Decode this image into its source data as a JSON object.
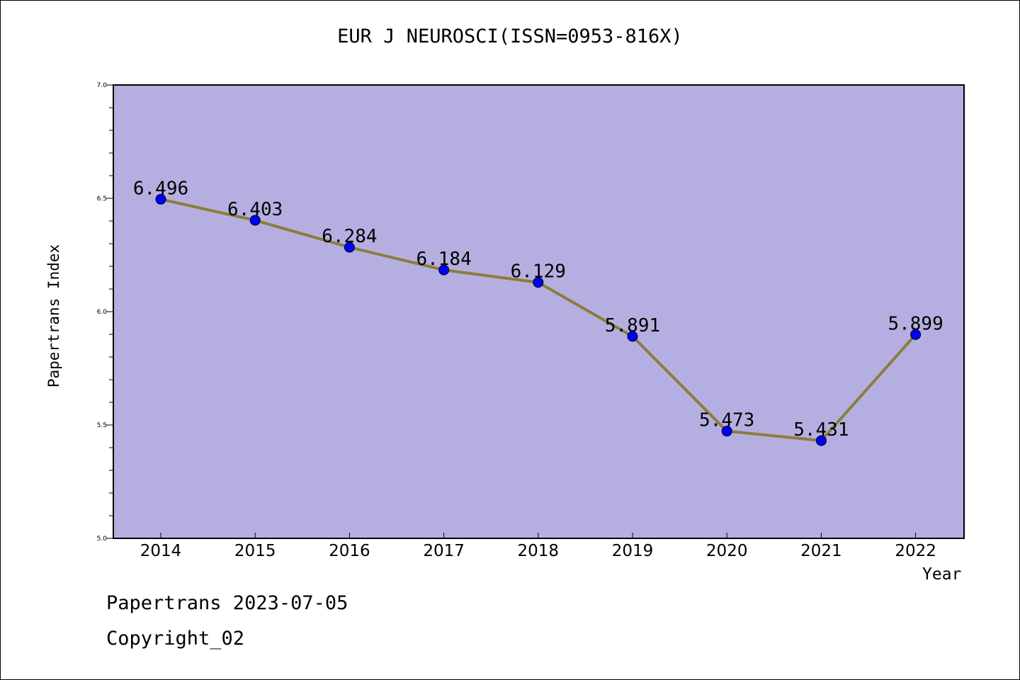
{
  "chart_data": {
    "type": "line",
    "title": "EUR J NEUROSCI(ISSN=0953-816X)",
    "xlabel": "Year",
    "ylabel": "Papertrans Index",
    "categories": [
      "2014",
      "2015",
      "2016",
      "2017",
      "2018",
      "2019",
      "2020",
      "2021",
      "2022"
    ],
    "series": [
      {
        "values": [
          6.496,
          6.403,
          6.284,
          6.184,
          6.129,
          5.891,
          5.473,
          5.431,
          5.899
        ]
      }
    ],
    "data_labels": [
      "6.496",
      "6.403",
      "6.284",
      "6.184",
      "6.129",
      "5.891",
      "5.473",
      "5.431",
      "5.899"
    ],
    "ylim": [
      5.0,
      7.0
    ],
    "yticks": [
      "5.0",
      "5.5",
      "6.0",
      "6.5",
      "7.0"
    ],
    "grid": false,
    "colors": {
      "plot_background": "#b5afe1",
      "line": "#8b7d3a",
      "marker": "#0000ff"
    }
  },
  "footer": {
    "line1": "Papertrans 2023-07-05",
    "line2": "Copyright_02"
  }
}
